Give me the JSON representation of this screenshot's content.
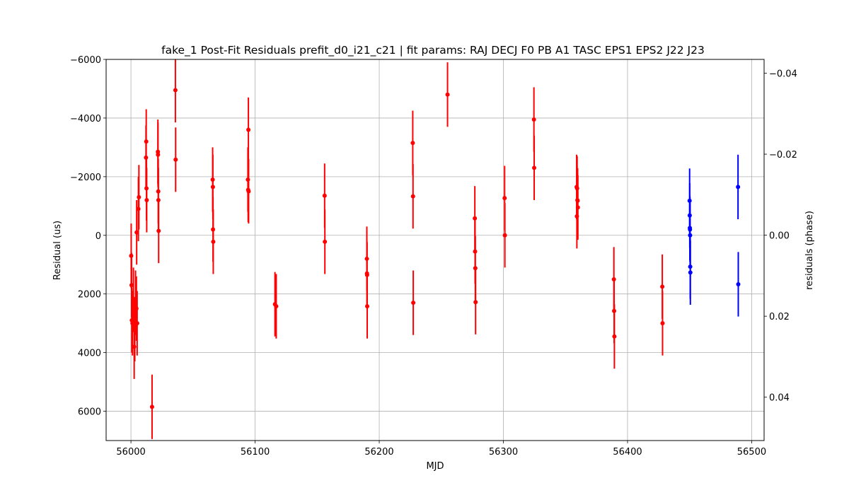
{
  "chart_data": {
    "type": "scatter",
    "title": "fake_1 Post-Fit Residuals prefit_d0_i21_c21 | fit params: RAJ DECJ F0 PB A1 TASC EPS1 EPS2 J22 J23",
    "xlabel": "MJD",
    "ylabel": "Residual (us)",
    "ylabel_right": "residuals (phase)",
    "xlim": [
      55980,
      56510
    ],
    "ylim": [
      7000,
      -6000
    ],
    "ylim_right": [
      0.0507,
      -0.0434
    ],
    "x_ticks": [
      56000,
      56100,
      56200,
      56300,
      56400,
      56500
    ],
    "y_ticks": [
      -6000,
      -4000,
      -2000,
      0,
      2000,
      4000,
      6000
    ],
    "y_tick_labels": [
      "−6000",
      "−4000",
      "−2000",
      "0",
      "2000",
      "4000",
      "6000"
    ],
    "y_right_ticks": [
      -0.04,
      -0.02,
      0.0,
      0.02,
      0.04
    ],
    "y_right_tick_labels": [
      "−0.04",
      "−0.02",
      "0.00",
      "0.02",
      "0.04"
    ],
    "grid": true,
    "series": [
      {
        "color": "#ff0000",
        "points": [
          {
            "x": 56000.2,
            "y": 700,
            "err": 1100
          },
          {
            "x": 56000.5,
            "y": 1700,
            "err": 1100
          },
          {
            "x": 56000.7,
            "y": 2900,
            "err": 1100
          },
          {
            "x": 56001.2,
            "y": 3000,
            "err": 1100
          },
          {
            "x": 56002.0,
            "y": 2200,
            "err": 1100
          },
          {
            "x": 56002.6,
            "y": 3800,
            "err": 1100
          },
          {
            "x": 56003.1,
            "y": 3200,
            "err": 1100
          },
          {
            "x": 56003.7,
            "y": 2300,
            "err": 1100
          },
          {
            "x": 56004.4,
            "y": 2500,
            "err": 1100
          },
          {
            "x": 56005.0,
            "y": 3000,
            "err": 1100
          },
          {
            "x": 56004.6,
            "y": -100,
            "err": 1100
          },
          {
            "x": 56006.0,
            "y": -900,
            "err": 1100
          },
          {
            "x": 56006.4,
            "y": -1300,
            "err": 1100
          },
          {
            "x": 56012.1,
            "y": -2650,
            "err": 1100
          },
          {
            "x": 56012.3,
            "y": -3200,
            "err": 1100
          },
          {
            "x": 56012.5,
            "y": -1600,
            "err": 1100
          },
          {
            "x": 56012.7,
            "y": -1200,
            "err": 1100
          },
          {
            "x": 56017.0,
            "y": 5850,
            "err": 1100
          },
          {
            "x": 56021.7,
            "y": -2850,
            "err": 1100
          },
          {
            "x": 56021.8,
            "y": -2750,
            "err": 1100
          },
          {
            "x": 56022.0,
            "y": -1500,
            "err": 1100
          },
          {
            "x": 56022.1,
            "y": -1200,
            "err": 1100
          },
          {
            "x": 56022.3,
            "y": -150,
            "err": 1100
          },
          {
            "x": 56035.8,
            "y": -4950,
            "err": 1100
          },
          {
            "x": 56036.0,
            "y": -2580,
            "err": 1100
          },
          {
            "x": 56065.8,
            "y": -1900,
            "err": 1100
          },
          {
            "x": 56066.0,
            "y": -1650,
            "err": 1100
          },
          {
            "x": 56066.1,
            "y": -200,
            "err": 1100
          },
          {
            "x": 56066.3,
            "y": 220,
            "err": 1100
          },
          {
            "x": 56094.2,
            "y": -1900,
            "err": 1100
          },
          {
            "x": 56094.4,
            "y": -1550,
            "err": 1100
          },
          {
            "x": 56094.6,
            "y": -3600,
            "err": 1100
          },
          {
            "x": 56094.8,
            "y": -1500,
            "err": 1100
          },
          {
            "x": 56116.0,
            "y": 2350,
            "err": 1100
          },
          {
            "x": 56117.0,
            "y": 2420,
            "err": 1100
          },
          {
            "x": 56156.0,
            "y": -1350,
            "err": 1100
          },
          {
            "x": 56156.2,
            "y": 220,
            "err": 1100
          },
          {
            "x": 56190.0,
            "y": 800,
            "err": 1100
          },
          {
            "x": 56190.1,
            "y": 1300,
            "err": 1100
          },
          {
            "x": 56190.2,
            "y": 1350,
            "err": 1100
          },
          {
            "x": 56190.3,
            "y": 2420,
            "err": 1100
          },
          {
            "x": 56227.0,
            "y": -3150,
            "err": 1100
          },
          {
            "x": 56227.2,
            "y": -1330,
            "err": 1100
          },
          {
            "x": 56227.4,
            "y": 2300,
            "err": 1100
          },
          {
            "x": 56255.0,
            "y": -4800,
            "err": 1100
          },
          {
            "x": 56277.0,
            "y": -580,
            "err": 1100
          },
          {
            "x": 56277.2,
            "y": 550,
            "err": 1100
          },
          {
            "x": 56277.4,
            "y": 1120,
            "err": 1100
          },
          {
            "x": 56277.6,
            "y": 2280,
            "err": 1100
          },
          {
            "x": 56301.0,
            "y": -1270,
            "err": 1100
          },
          {
            "x": 56301.2,
            "y": 0,
            "err": 1100
          },
          {
            "x": 56324.6,
            "y": -3950,
            "err": 1100
          },
          {
            "x": 56324.8,
            "y": -2300,
            "err": 1100
          },
          {
            "x": 56359.0,
            "y": -1650,
            "err": 1100
          },
          {
            "x": 56359.2,
            "y": -650,
            "err": 1100
          },
          {
            "x": 56359.4,
            "y": -1600,
            "err": 1100
          },
          {
            "x": 56359.6,
            "y": -1200,
            "err": 1100
          },
          {
            "x": 56359.8,
            "y": -1180,
            "err": 1100
          },
          {
            "x": 56360.0,
            "y": -950,
            "err": 1100
          },
          {
            "x": 56389.0,
            "y": 1500,
            "err": 1100
          },
          {
            "x": 56389.2,
            "y": 2580,
            "err": 1100
          },
          {
            "x": 56389.4,
            "y": 3450,
            "err": 1100
          },
          {
            "x": 56428.0,
            "y": 1750,
            "err": 1100
          },
          {
            "x": 56428.2,
            "y": 3000,
            "err": 1100
          }
        ]
      },
      {
        "color": "#0000ff",
        "points": [
          {
            "x": 56450.0,
            "y": -1180,
            "err": 1100
          },
          {
            "x": 56450.1,
            "y": -680,
            "err": 1100
          },
          {
            "x": 56450.2,
            "y": -250,
            "err": 1100
          },
          {
            "x": 56450.3,
            "y": -200,
            "err": 1100
          },
          {
            "x": 56450.4,
            "y": 0,
            "err": 1100
          },
          {
            "x": 56450.5,
            "y": 1070,
            "err": 1100
          },
          {
            "x": 56450.6,
            "y": 1270,
            "err": 1100
          },
          {
            "x": 56489.0,
            "y": -1650,
            "err": 1100
          },
          {
            "x": 56489.2,
            "y": 1670,
            "err": 1100
          }
        ]
      }
    ]
  }
}
